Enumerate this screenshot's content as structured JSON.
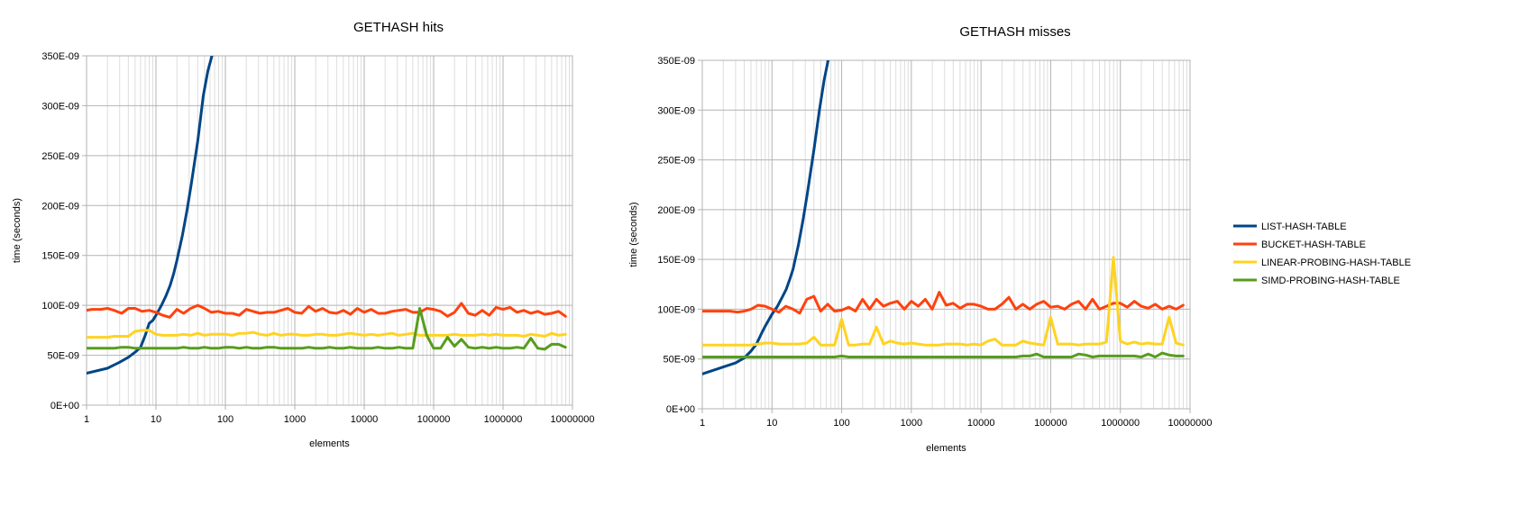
{
  "colors": {
    "LIST-HASH-TABLE": "#004586",
    "BUCKET-HASH-TABLE": "#ff420e",
    "LINEAR-PROBING-HASH-TABLE": "#ffd320",
    "SIMD-PROBING-HASH-TABLE": "#579d1c",
    "grid_major": "#b3b3b3",
    "grid_minor": "#dddddd"
  },
  "legend": {
    "placement": "right",
    "entries": [
      "LIST-HASH-TABLE",
      "BUCKET-HASH-TABLE",
      "LINEAR-PROBING-HASH-TABLE",
      "SIMD-PROBING-HASH-TABLE"
    ]
  },
  "chart_data": [
    {
      "type": "line",
      "title": "GETHASH hits",
      "xlabel": "elements",
      "ylabel": "time (seconds)",
      "x_scale": "log",
      "xlim": [
        1,
        10000000
      ],
      "ylim": [
        0,
        3.5e-07
      ],
      "grid": true,
      "x_ticks": [
        1,
        10,
        100,
        1000,
        10000,
        100000,
        1000000,
        10000000
      ],
      "x_tick_labels": [
        "1",
        "10",
        "100",
        "1000",
        "10000",
        "100000",
        "1000000",
        "10000000"
      ],
      "y_ticks": [
        0,
        5e-08,
        1e-07,
        1.5e-07,
        2e-07,
        2.5e-07,
        3e-07,
        3.5e-07
      ],
      "y_tick_labels": [
        "0E+00",
        "50E-09",
        "100E-09",
        "150E-09",
        "200E-09",
        "250E-09",
        "300E-09",
        "350E-09"
      ],
      "x": [
        1,
        1.2,
        1.6,
        2,
        2.5,
        3.2,
        4,
        5,
        6.3,
        8,
        10,
        12.6,
        15.8,
        20,
        25,
        31.6,
        40,
        50,
        63,
        79,
        100,
        126,
        158,
        200,
        251,
        316,
        398,
        501,
        631,
        794,
        1000,
        1259,
        1585,
        1995,
        2512,
        3162,
        3981,
        5012,
        6310,
        7943,
        10000,
        12589,
        15849,
        19953,
        25119,
        31623,
        39811,
        50119,
        63096,
        79433,
        100000,
        125893,
        158489,
        199526,
        251189,
        316228,
        398107,
        501187,
        630957,
        794328,
        1000000,
        1258925,
        1584893,
        1995262,
        2511886,
        3162278,
        3981072,
        5011872,
        6309573,
        7943282
      ],
      "series": [
        {
          "name": "LIST-HASH-TABLE",
          "x": [
            1,
            2,
            3,
            4,
            5,
            6,
            7,
            8,
            9,
            10,
            12,
            14,
            16,
            18,
            20,
            24,
            28,
            32,
            40,
            48,
            56,
            64
          ],
          "values": [
            3.2e-08,
            3.7e-08,
            4.3e-08,
            4.8e-08,
            5.3e-08,
            5.8e-08,
            7e-08,
            8.2e-08,
            8.5e-08,
            9e-08,
            1e-07,
            1.1e-07,
            1.2e-07,
            1.32e-07,
            1.45e-07,
            1.7e-07,
            1.95e-07,
            2.2e-07,
            2.65e-07,
            3.1e-07,
            3.35e-07,
            3.5e-07
          ]
        },
        {
          "name": "BUCKET-HASH-TABLE",
          "values": [
            9.5e-08,
            9.6e-08,
            9.6e-08,
            9.7e-08,
            9.5e-08,
            9.2e-08,
            9.7e-08,
            9.7e-08,
            9.4e-08,
            9.5e-08,
            9.3e-08,
            9e-08,
            8.8e-08,
            9.6e-08,
            9.2e-08,
            9.7e-08,
            1e-07,
            9.7e-08,
            9.3e-08,
            9.4e-08,
            9.2e-08,
            9.2e-08,
            9e-08,
            9.6e-08,
            9.4e-08,
            9.2e-08,
            9.3e-08,
            9.3e-08,
            9.5e-08,
            9.7e-08,
            9.3e-08,
            9.2e-08,
            9.9e-08,
            9.4e-08,
            9.7e-08,
            9.3e-08,
            9.2e-08,
            9.5e-08,
            9.1e-08,
            9.7e-08,
            9.3e-08,
            9.6e-08,
            9.2e-08,
            9.2e-08,
            9.4e-08,
            9.5e-08,
            9.6e-08,
            9.3e-08,
            9.3e-08,
            9.7e-08,
            9.6e-08,
            9.4e-08,
            8.9e-08,
            9.3e-08,
            1.02e-07,
            9.2e-08,
            9e-08,
            9.5e-08,
            9e-08,
            9.8e-08,
            9.6e-08,
            9.8e-08,
            9.3e-08,
            9.5e-08,
            9.2e-08,
            9.4e-08,
            9.1e-08,
            9.2e-08,
            9.4e-08,
            8.9e-08
          ]
        },
        {
          "name": "LINEAR-PROBING-HASH-TABLE",
          "values": [
            6.8e-08,
            6.8e-08,
            6.8e-08,
            6.8e-08,
            6.9e-08,
            6.9e-08,
            6.9e-08,
            7.4e-08,
            7.5e-08,
            7.5e-08,
            7.1e-08,
            7e-08,
            7e-08,
            7e-08,
            7.1e-08,
            7e-08,
            7.2e-08,
            7e-08,
            7.1e-08,
            7.1e-08,
            7.1e-08,
            7e-08,
            7.2e-08,
            7.2e-08,
            7.3e-08,
            7.1e-08,
            7e-08,
            7.2e-08,
            7e-08,
            7.1e-08,
            7.1e-08,
            7e-08,
            7e-08,
            7.1e-08,
            7.1e-08,
            7e-08,
            7e-08,
            7.1e-08,
            7.2e-08,
            7.1e-08,
            7e-08,
            7.1e-08,
            7e-08,
            7.1e-08,
            7.2e-08,
            7e-08,
            7.1e-08,
            7.2e-08,
            7e-08,
            7e-08,
            7e-08,
            7e-08,
            7e-08,
            7.1e-08,
            7e-08,
            7e-08,
            7e-08,
            7.1e-08,
            7e-08,
            7.1e-08,
            7e-08,
            7e-08,
            7e-08,
            6.9e-08,
            7.1e-08,
            7e-08,
            6.9e-08,
            7.2e-08,
            7e-08,
            7.1e-08
          ]
        },
        {
          "name": "SIMD-PROBING-HASH-TABLE",
          "values": [
            5.7e-08,
            5.7e-08,
            5.7e-08,
            5.7e-08,
            5.7e-08,
            5.8e-08,
            5.8e-08,
            5.7e-08,
            5.7e-08,
            5.7e-08,
            5.7e-08,
            5.7e-08,
            5.7e-08,
            5.7e-08,
            5.8e-08,
            5.7e-08,
            5.7e-08,
            5.8e-08,
            5.7e-08,
            5.7e-08,
            5.8e-08,
            5.8e-08,
            5.7e-08,
            5.8e-08,
            5.7e-08,
            5.7e-08,
            5.8e-08,
            5.8e-08,
            5.7e-08,
            5.7e-08,
            5.7e-08,
            5.7e-08,
            5.8e-08,
            5.7e-08,
            5.7e-08,
            5.8e-08,
            5.7e-08,
            5.7e-08,
            5.8e-08,
            5.7e-08,
            5.7e-08,
            5.7e-08,
            5.8e-08,
            5.7e-08,
            5.7e-08,
            5.8e-08,
            5.7e-08,
            5.7e-08,
            9.7e-08,
            7e-08,
            5.7e-08,
            5.7e-08,
            6.8e-08,
            5.9e-08,
            6.6e-08,
            5.8e-08,
            5.7e-08,
            5.8e-08,
            5.7e-08,
            5.8e-08,
            5.7e-08,
            5.7e-08,
            5.8e-08,
            5.7e-08,
            6.7e-08,
            5.7e-08,
            5.6e-08,
            6.1e-08,
            6.1e-08,
            5.8e-08
          ]
        }
      ]
    },
    {
      "type": "line",
      "title": "GETHASH misses",
      "xlabel": "elements",
      "ylabel": "time (seconds)",
      "x_scale": "log",
      "xlim": [
        1,
        10000000
      ],
      "ylim": [
        0,
        3.5e-07
      ],
      "grid": true,
      "x_ticks": [
        1,
        10,
        100,
        1000,
        10000,
        100000,
        1000000,
        10000000
      ],
      "x_tick_labels": [
        "1",
        "10",
        "100",
        "1000",
        "10000",
        "100000",
        "1000000",
        "10000000"
      ],
      "y_ticks": [
        0,
        5e-08,
        1e-07,
        1.5e-07,
        2e-07,
        2.5e-07,
        3e-07,
        3.5e-07
      ],
      "y_tick_labels": [
        "0E+00",
        "50E-09",
        "100E-09",
        "150E-09",
        "200E-09",
        "250E-09",
        "300E-09",
        "350E-09"
      ],
      "x": [
        1,
        1.2,
        1.6,
        2,
        2.5,
        3.2,
        4,
        5,
        6.3,
        8,
        10,
        12.6,
        15.8,
        20,
        25,
        31.6,
        40,
        50,
        63,
        79,
        100,
        126,
        158,
        200,
        251,
        316,
        398,
        501,
        631,
        794,
        1000,
        1259,
        1585,
        1995,
        2512,
        3162,
        3981,
        5012,
        6310,
        7943,
        10000,
        12589,
        15849,
        19953,
        25119,
        31623,
        39811,
        50119,
        63096,
        79433,
        100000,
        125893,
        158489,
        199526,
        251189,
        316228,
        398107,
        501187,
        630957,
        794328,
        1000000,
        1258925,
        1584893,
        1995262,
        2511886,
        3162278,
        3981072,
        5011872,
        6309573,
        7943282
      ],
      "series": [
        {
          "name": "LIST-HASH-TABLE",
          "x": [
            1,
            2,
            3,
            4,
            5,
            6,
            7,
            8,
            10,
            12,
            14,
            16,
            18,
            20,
            24,
            28,
            32,
            40,
            48,
            56,
            64
          ],
          "values": [
            3.5e-08,
            4.2e-08,
            4.6e-08,
            5.1e-08,
            5.8e-08,
            6.5e-08,
            7.5e-08,
            8.3e-08,
            9.5e-08,
            1.03e-07,
            1.12e-07,
            1.2e-07,
            1.3e-07,
            1.4e-07,
            1.65e-07,
            1.9e-07,
            2.15e-07,
            2.6e-07,
            3e-07,
            3.3e-07,
            3.5e-07
          ]
        },
        {
          "name": "BUCKET-HASH-TABLE",
          "values": [
            9.8e-08,
            9.8e-08,
            9.8e-08,
            9.8e-08,
            9.8e-08,
            9.7e-08,
            9.8e-08,
            1e-07,
            1.04e-07,
            1.03e-07,
            1e-07,
            9.7e-08,
            1.03e-07,
            1e-07,
            9.6e-08,
            1.1e-07,
            1.13e-07,
            9.8e-08,
            1.05e-07,
            9.8e-08,
            9.9e-08,
            1.02e-07,
            9.8e-08,
            1.1e-07,
            1e-07,
            1.1e-07,
            1.03e-07,
            1.06e-07,
            1.08e-07,
            1e-07,
            1.08e-07,
            1.03e-07,
            1.1e-07,
            1e-07,
            1.17e-07,
            1.04e-07,
            1.06e-07,
            1.01e-07,
            1.05e-07,
            1.05e-07,
            1.03e-07,
            1e-07,
            1e-07,
            1.05e-07,
            1.12e-07,
            1e-07,
            1.05e-07,
            1e-07,
            1.05e-07,
            1.08e-07,
            1.02e-07,
            1.03e-07,
            1e-07,
            1.05e-07,
            1.08e-07,
            1e-07,
            1.1e-07,
            1e-07,
            1.03e-07,
            1.06e-07,
            1.06e-07,
            1.02e-07,
            1.08e-07,
            1.03e-07,
            1.01e-07,
            1.05e-07,
            1e-07,
            1.03e-07,
            1e-07,
            1.04e-07
          ]
        },
        {
          "name": "LINEAR-PROBING-HASH-TABLE",
          "values": [
            6.4e-08,
            6.4e-08,
            6.4e-08,
            6.4e-08,
            6.4e-08,
            6.4e-08,
            6.4e-08,
            6.4e-08,
            6.5e-08,
            6.6e-08,
            6.6e-08,
            6.5e-08,
            6.5e-08,
            6.5e-08,
            6.5e-08,
            6.6e-08,
            7.2e-08,
            6.4e-08,
            6.4e-08,
            6.4e-08,
            9e-08,
            6.4e-08,
            6.4e-08,
            6.5e-08,
            6.5e-08,
            8.2e-08,
            6.5e-08,
            6.8e-08,
            6.6e-08,
            6.5e-08,
            6.6e-08,
            6.5e-08,
            6.4e-08,
            6.4e-08,
            6.4e-08,
            6.5e-08,
            6.5e-08,
            6.5e-08,
            6.4e-08,
            6.5e-08,
            6.4e-08,
            6.8e-08,
            7e-08,
            6.4e-08,
            6.4e-08,
            6.4e-08,
            6.8e-08,
            6.6e-08,
            6.5e-08,
            6.4e-08,
            9.2e-08,
            6.5e-08,
            6.5e-08,
            6.5e-08,
            6.4e-08,
            6.5e-08,
            6.5e-08,
            6.5e-08,
            6.7e-08,
            1.52e-07,
            6.8e-08,
            6.5e-08,
            6.7e-08,
            6.5e-08,
            6.6e-08,
            6.5e-08,
            6.5e-08,
            9.2e-08,
            6.6e-08,
            6.4e-08
          ]
        },
        {
          "name": "SIMD-PROBING-HASH-TABLE",
          "values": [
            5.2e-08,
            5.2e-08,
            5.2e-08,
            5.2e-08,
            5.2e-08,
            5.2e-08,
            5.2e-08,
            5.2e-08,
            5.2e-08,
            5.2e-08,
            5.2e-08,
            5.2e-08,
            5.2e-08,
            5.2e-08,
            5.2e-08,
            5.2e-08,
            5.2e-08,
            5.2e-08,
            5.2e-08,
            5.2e-08,
            5.3e-08,
            5.2e-08,
            5.2e-08,
            5.2e-08,
            5.2e-08,
            5.2e-08,
            5.2e-08,
            5.2e-08,
            5.2e-08,
            5.2e-08,
            5.2e-08,
            5.2e-08,
            5.2e-08,
            5.2e-08,
            5.2e-08,
            5.2e-08,
            5.2e-08,
            5.2e-08,
            5.2e-08,
            5.2e-08,
            5.2e-08,
            5.2e-08,
            5.2e-08,
            5.2e-08,
            5.2e-08,
            5.2e-08,
            5.3e-08,
            5.3e-08,
            5.5e-08,
            5.2e-08,
            5.2e-08,
            5.2e-08,
            5.2e-08,
            5.2e-08,
            5.5e-08,
            5.4e-08,
            5.2e-08,
            5.3e-08,
            5.3e-08,
            5.3e-08,
            5.3e-08,
            5.3e-08,
            5.3e-08,
            5.2e-08,
            5.5e-08,
            5.2e-08,
            5.6e-08,
            5.4e-08,
            5.3e-08,
            5.3e-08
          ]
        }
      ]
    }
  ]
}
